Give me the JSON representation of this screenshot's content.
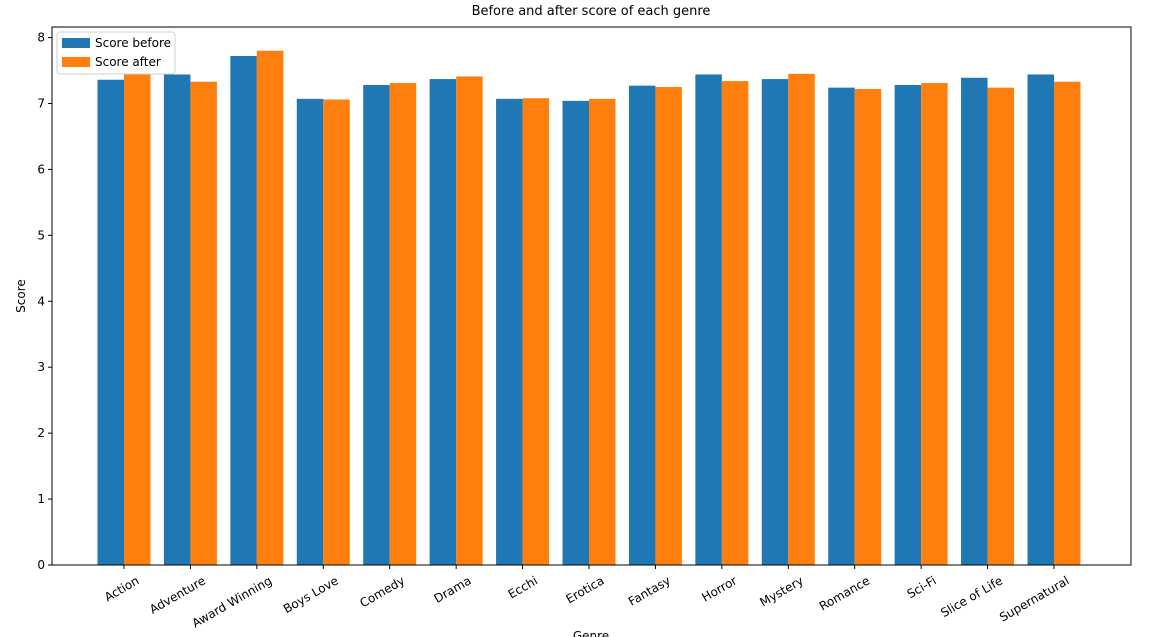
{
  "chart_data": {
    "type": "bar",
    "title": "Before and after score of each genre",
    "x_label": "Genre",
    "y_label": "Score",
    "categories": [
      "Action",
      "Adventure",
      "Award Winning",
      "Boys Love",
      "Comedy",
      "Drama",
      "Ecchi",
      "Erotica",
      "Fantasy",
      "Horror",
      "Mystery",
      "Romance",
      "Sci-Fi",
      "Slice of Life",
      "Supernatural"
    ],
    "series": [
      {
        "name": "Score before",
        "color": "#1f77b4",
        "values": [
          7.36,
          7.44,
          7.72,
          7.07,
          7.28,
          7.37,
          7.07,
          7.04,
          7.27,
          7.44,
          7.37,
          7.24,
          7.28,
          7.39,
          7.44
        ]
      },
      {
        "name": "Score after",
        "color": "#ff7f0e",
        "values": [
          7.44,
          7.33,
          7.8,
          7.06,
          7.31,
          7.41,
          7.08,
          7.07,
          7.25,
          7.34,
          7.45,
          7.22,
          7.31,
          7.24,
          7.33
        ]
      }
    ],
    "ylim": [
      0,
      8.16
    ],
    "yticks": [
      0,
      1,
      2,
      3,
      4,
      5,
      6,
      7,
      8
    ],
    "legend": "upper left"
  }
}
